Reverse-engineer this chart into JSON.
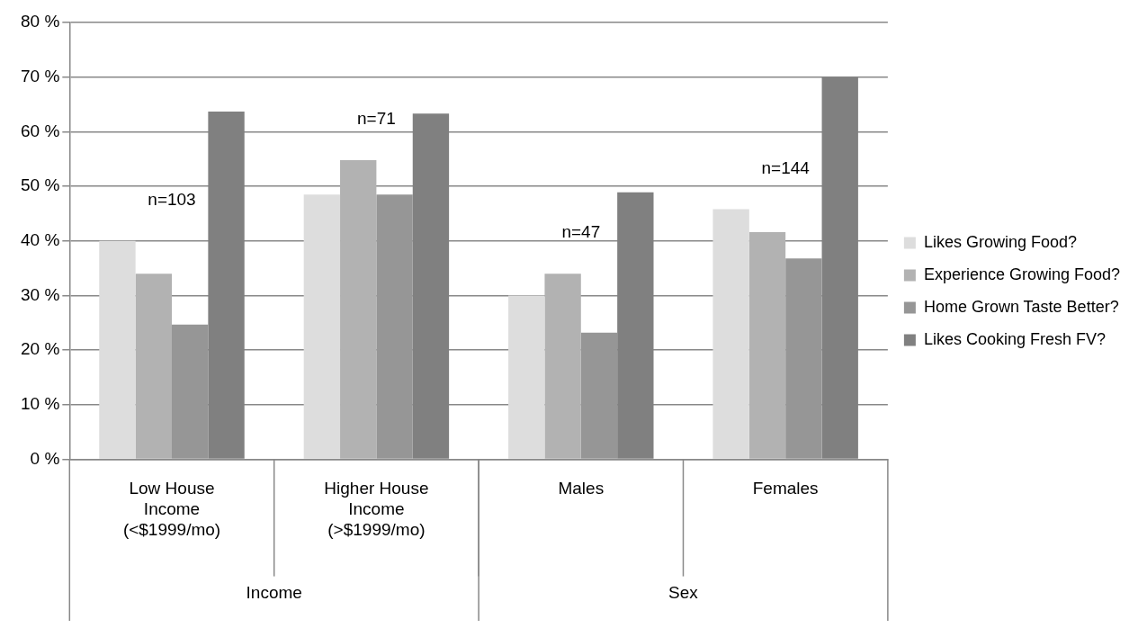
{
  "chart_data": {
    "type": "bar",
    "categories": [
      "Low House Income (<$1999/mo)",
      "Higher House Income (>$1999/mo)",
      "Males",
      "Females"
    ],
    "series": [
      {
        "name": "Likes Growing Food?",
        "color": "#dddddd",
        "values": [
          40,
          48.5,
          30,
          45.8
        ]
      },
      {
        "name": "Experience Growing Food?",
        "color": "#b2b2b2",
        "values": [
          34,
          54.8,
          34,
          41.6
        ]
      },
      {
        "name": "Home Grown Taste Better?",
        "color": "#969696",
        "values": [
          24.7,
          48.5,
          23.2,
          36.8
        ]
      },
      {
        "name": "Likes Cooking Fresh FV?",
        "color": "#808080",
        "values": [
          63.7,
          63.3,
          48.9,
          70
        ]
      }
    ],
    "ylim": [
      0,
      80
    ],
    "yticks": [
      {
        "value": 0,
        "label": "0 %"
      },
      {
        "value": 10,
        "label": "10 %"
      },
      {
        "value": 20,
        "label": "20 %"
      },
      {
        "value": 30,
        "label": "30 %"
      },
      {
        "value": 40,
        "label": "40 %"
      },
      {
        "value": 50,
        "label": "50 %"
      },
      {
        "value": 60,
        "label": "60 %"
      },
      {
        "value": 70,
        "label": "70 %"
      },
      {
        "value": 80,
        "label": "80 %"
      }
    ],
    "grid": "y",
    "legend": "right",
    "annotations": [
      "n=103",
      "n=71",
      "n=47",
      "n=144",
      "Income",
      "Sex"
    ]
  }
}
